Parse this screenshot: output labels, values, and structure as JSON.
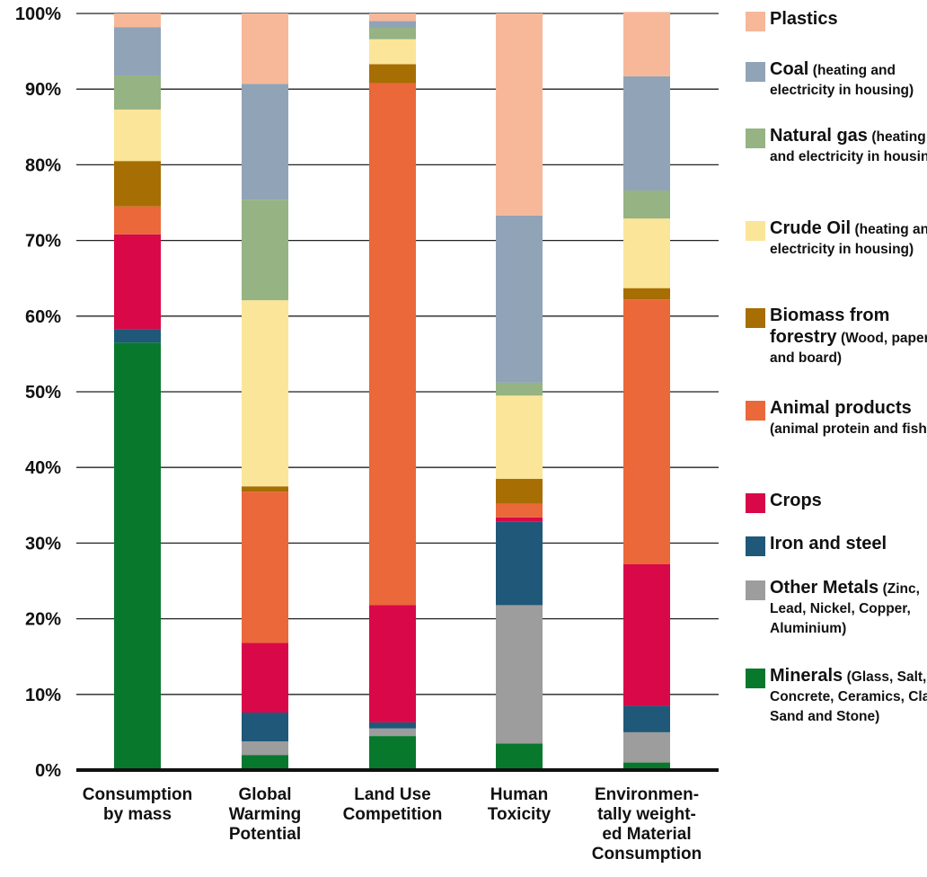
{
  "chart_data": {
    "type": "bar",
    "stacked": true,
    "categories": [
      [
        "Consumption",
        "by mass"
      ],
      [
        "Global",
        "Warming",
        "Potential"
      ],
      [
        "Land Use",
        "Competition"
      ],
      [
        "Human",
        "Toxicity"
      ],
      [
        "Environmen-",
        "tally weight-",
        "ed Material",
        "Consumption"
      ]
    ],
    "y_ticks": [
      "0%",
      "10%",
      "20%",
      "30%",
      "40%",
      "50%",
      "60%",
      "70%",
      "80%",
      "90%",
      "100%"
    ],
    "ylim": [
      0,
      100
    ],
    "grid": true,
    "legend_position": "right",
    "series": [
      {
        "name": "Minerals",
        "desc": "(Glass, Salt, Concrete, Ceramics, Clay, Sand and Stone)",
        "color": "#08782d",
        "values": [
          56.5,
          2.0,
          4.5,
          3.5,
          1.0
        ]
      },
      {
        "name": "Other Metals",
        "desc": "(Zinc, Lead, Nickel, Copper, Aluminium)",
        "color": "#9d9d9d",
        "values": [
          0,
          1.8,
          1.0,
          18.3,
          4.0
        ]
      },
      {
        "name": "Iron and steel",
        "desc": "",
        "color": "#1f5879",
        "values": [
          1.8,
          3.8,
          0.8,
          11.0,
          3.5
        ]
      },
      {
        "name": "Crops",
        "desc": "",
        "color": "#d90848",
        "values": [
          12.5,
          9.2,
          15.5,
          0.6,
          18.7
        ]
      },
      {
        "name": "Animal products",
        "desc": "(animal protein and fish)",
        "color": "#ea6839",
        "values": [
          3.7,
          20.0,
          69.0,
          1.8,
          35.0
        ]
      },
      {
        "name": "Biomass from forestry",
        "desc": "(Wood, paper and board)",
        "color": "#a76e03",
        "values": [
          6.0,
          0.7,
          2.5,
          3.3,
          1.5
        ]
      },
      {
        "name": "Crude Oil",
        "desc": "(heating and electricity in housing)",
        "color": "#fbe598",
        "values": [
          6.8,
          24.6,
          3.3,
          11.0,
          9.2
        ]
      },
      {
        "name": "Natural gas",
        "desc": "(heating and electricity in housing)",
        "color": "#95b383",
        "values": [
          4.5,
          13.3,
          1.5,
          1.7,
          3.7
        ]
      },
      {
        "name": "Coal",
        "desc": "(heating and electricity in housing)",
        "color": "#91a3b7",
        "values": [
          6.4,
          15.3,
          0.9,
          22.1,
          15.1
        ]
      },
      {
        "name": "Plastics",
        "desc": "",
        "color": "#f6b899",
        "values": [
          1.8,
          9.3,
          1.0,
          26.7,
          8.5
        ]
      }
    ]
  }
}
